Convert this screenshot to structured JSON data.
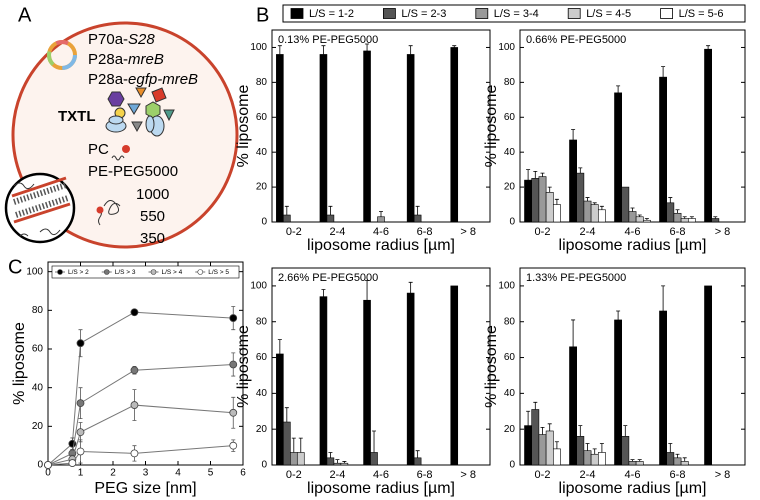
{
  "panel_labels": [
    "A",
    "B",
    "C"
  ],
  "diagram": {
    "plasmids": [
      {
        "prefix": "P70a-",
        "gene": "S28"
      },
      {
        "prefix": "P28a-",
        "gene": "mreB"
      },
      {
        "prefix": "P28a-",
        "gene": "egfp-mreB"
      }
    ],
    "txtl": "TXTL",
    "lipids": [
      "PC",
      "PE-PEG5000"
    ],
    "peg_sizes": [
      "1000",
      "550",
      "350"
    ]
  },
  "chart_data": [
    {
      "type": "bar",
      "annotation": "0.13% PE-PEG5000",
      "ylabel": "% liposome",
      "xlabel": "liposome radius [µm]",
      "categories": [
        "0-2",
        "2-4",
        "4-6",
        "6-8",
        "> 8"
      ],
      "ylim": [
        0,
        110
      ],
      "yticks": [
        0,
        20,
        40,
        60,
        80,
        100
      ],
      "series": [
        {
          "name": "L/S = 1-2",
          "color": "#000000",
          "values": [
            96,
            96,
            98,
            96,
            100
          ],
          "errors": [
            5,
            5,
            4,
            5,
            1
          ]
        },
        {
          "name": "L/S = 2-3",
          "color": "#555555",
          "values": [
            4,
            4,
            0,
            4,
            0
          ],
          "errors": [
            5,
            5,
            0,
            5,
            0
          ]
        },
        {
          "name": "L/S = 3-4",
          "color": "#999999",
          "values": [
            0,
            0,
            3,
            0,
            0
          ],
          "errors": [
            0,
            0,
            3,
            0,
            0
          ]
        },
        {
          "name": "L/S = 4-5",
          "color": "#cccccc",
          "values": [
            0,
            0,
            0,
            0,
            0
          ],
          "errors": [
            0,
            0,
            0,
            0,
            0
          ]
        },
        {
          "name": "L/S = 5-6",
          "color": "#ffffff",
          "values": [
            0,
            0,
            0,
            0,
            0
          ],
          "errors": [
            0,
            0,
            0,
            0,
            0
          ]
        }
      ]
    },
    {
      "type": "bar",
      "annotation": "0.66% PE-PEG5000",
      "ylabel": "% liposome",
      "xlabel": "liposome radius [µm]",
      "categories": [
        "0-2",
        "2-4",
        "4-6",
        "6-8",
        "> 8"
      ],
      "ylim": [
        0,
        110
      ],
      "yticks": [
        0,
        20,
        40,
        60,
        80,
        100
      ],
      "series": [
        {
          "color": "#000000",
          "values": [
            24,
            47,
            74,
            83,
            99
          ],
          "errors": [
            6,
            6,
            4,
            6,
            2
          ]
        },
        {
          "color": "#555555",
          "values": [
            25,
            28,
            20,
            11,
            2
          ],
          "errors": [
            4,
            3,
            0,
            3,
            1
          ]
        },
        {
          "color": "#999999",
          "values": [
            26,
            12,
            6,
            5,
            0
          ],
          "errors": [
            2,
            2,
            2,
            2,
            0
          ]
        },
        {
          "color": "#cccccc",
          "values": [
            17,
            10,
            3,
            2,
            0
          ],
          "errors": [
            3,
            1,
            1,
            1,
            0
          ]
        },
        {
          "color": "#ffffff",
          "values": [
            10,
            7,
            1,
            2,
            0
          ],
          "errors": [
            3,
            2,
            1,
            1,
            0
          ]
        }
      ]
    },
    {
      "type": "bar",
      "annotation": "2.66% PE-PEG5000",
      "ylabel": "% liposome",
      "xlabel": "liposome radius [µm]",
      "categories": [
        "0-2",
        "2-4",
        "4-6",
        "6-8",
        "> 8"
      ],
      "ylim": [
        0,
        110
      ],
      "yticks": [
        0,
        20,
        40,
        60,
        80,
        100
      ],
      "series": [
        {
          "color": "#000000",
          "values": [
            62,
            94,
            92,
            96,
            100
          ],
          "errors": [
            8,
            4,
            11,
            6,
            0
          ]
        },
        {
          "color": "#555555",
          "values": [
            24,
            4,
            7,
            4,
            0
          ],
          "errors": [
            8,
            3,
            12,
            4,
            0
          ]
        },
        {
          "color": "#999999",
          "values": [
            7,
            1,
            0,
            0,
            0
          ],
          "errors": [
            8,
            2,
            0,
            0,
            0
          ]
        },
        {
          "color": "#cccccc",
          "values": [
            7,
            1,
            0,
            0,
            0
          ],
          "errors": [
            8,
            1,
            0,
            0,
            0
          ]
        },
        {
          "color": "#ffffff",
          "values": [
            0,
            0,
            0,
            0,
            0
          ],
          "errors": [
            0,
            0,
            0,
            0,
            0
          ]
        }
      ]
    },
    {
      "type": "bar",
      "annotation": "1.33% PE-PEG5000",
      "ylabel": "% liposome",
      "xlabel": "liposome radius [µm]",
      "categories": [
        "0-2",
        "2-4",
        "4-6",
        "6-8",
        "> 8"
      ],
      "ylim": [
        0,
        110
      ],
      "yticks": [
        0,
        20,
        40,
        60,
        80,
        100
      ],
      "series": [
        {
          "color": "#000000",
          "values": [
            22,
            66,
            81,
            86,
            100
          ],
          "errors": [
            8,
            15,
            5,
            14,
            0
          ]
        },
        {
          "color": "#555555",
          "values": [
            31,
            16,
            16,
            7,
            0
          ],
          "errors": [
            4,
            6,
            6,
            5,
            0
          ]
        },
        {
          "color": "#999999",
          "values": [
            17,
            8,
            2,
            4,
            0
          ],
          "errors": [
            4,
            4,
            1,
            2,
            0
          ]
        },
        {
          "color": "#cccccc",
          "values": [
            19,
            6,
            2,
            2,
            0
          ],
          "errors": [
            4,
            3,
            1,
            2,
            0
          ]
        },
        {
          "color": "#ffffff",
          "values": [
            9,
            7,
            0,
            0,
            0
          ],
          "errors": [
            4,
            5,
            0,
            0,
            0
          ]
        }
      ]
    },
    {
      "type": "line",
      "ylabel": "% liposome",
      "xlabel": "PEG size [nm]",
      "x": [
        0,
        0.75,
        1.0,
        2.66,
        5.7
      ],
      "xlim": [
        0,
        6
      ],
      "xticks": [
        0,
        1,
        2,
        3,
        4,
        5,
        6
      ],
      "ylim": [
        0,
        105
      ],
      "yticks": [
        0,
        20,
        40,
        60,
        80,
        100
      ],
      "series": [
        {
          "name": "L/S > 2",
          "color": "#000000",
          "values": [
            0,
            11,
            63,
            79,
            76
          ],
          "errors": [
            0,
            3,
            7,
            1,
            6
          ]
        },
        {
          "name": "L/S > 3",
          "color": "#777777",
          "values": [
            0,
            6,
            32,
            49,
            52
          ],
          "errors": [
            0,
            2,
            8,
            2,
            6
          ]
        },
        {
          "name": "L/S > 4",
          "color": "#bbbbbb",
          "values": [
            0,
            3,
            17,
            31,
            27
          ],
          "errors": [
            0,
            2,
            5,
            8,
            8
          ]
        },
        {
          "name": "L/S > 5",
          "color": "#ffffff",
          "values": [
            0,
            1,
            7,
            6,
            10
          ],
          "errors": [
            0,
            1,
            6,
            4,
            3
          ]
        }
      ]
    }
  ]
}
